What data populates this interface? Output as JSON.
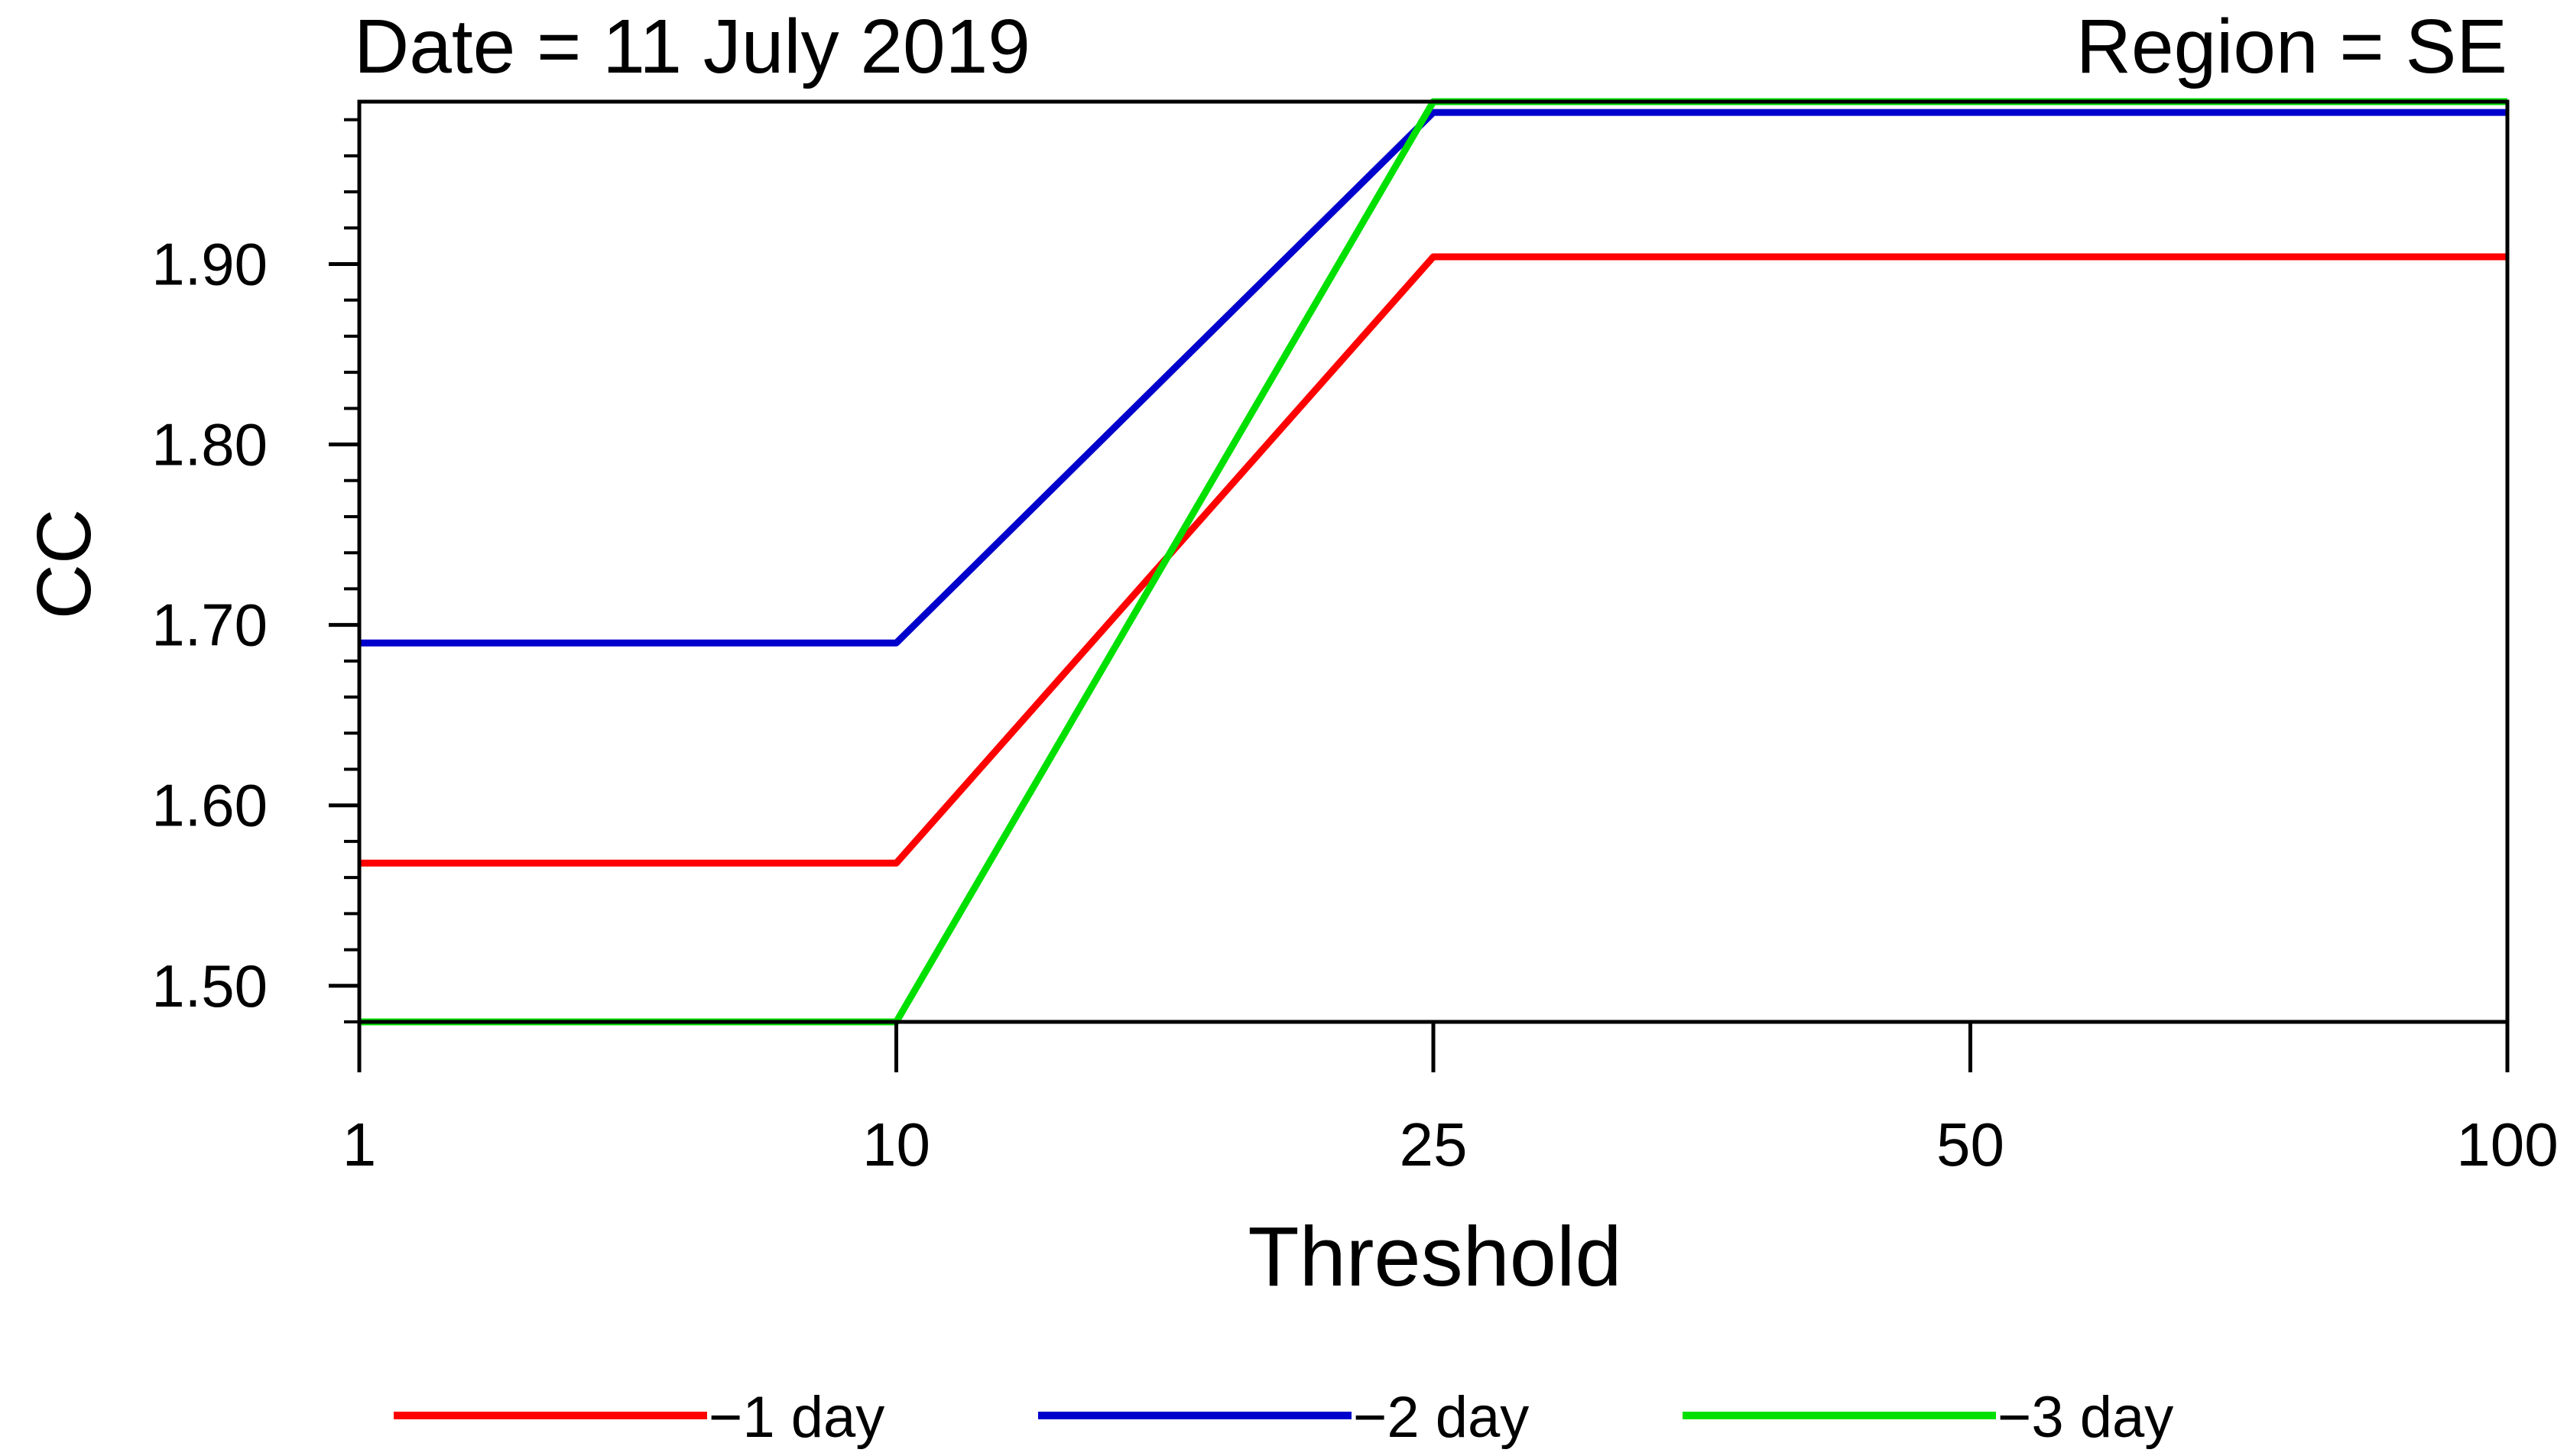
{
  "chart_data": {
    "type": "line",
    "title_left": "Date = 11 July 2019",
    "title_right": "Region = SE",
    "xlabel": "Threshold",
    "ylabel": "CC",
    "x": [
      "1",
      "10",
      "25",
      "50",
      "100"
    ],
    "ylim": [
      1.48,
      1.99
    ],
    "yticks": [
      "1.50",
      "1.60",
      "1.70",
      "1.80",
      "1.90"
    ],
    "ytick_values": [
      1.5,
      1.6,
      1.7,
      1.8,
      1.9
    ],
    "grid": false,
    "legend_position": "bottom",
    "series": [
      {
        "name": "−1 day",
        "color": "#ff0000",
        "values": [
          1.568,
          1.568,
          1.904,
          1.904,
          1.904
        ]
      },
      {
        "name": "−2 day",
        "color": "#0000cc",
        "values": [
          1.69,
          1.69,
          1.984,
          1.984,
          1.984
        ]
      },
      {
        "name": "−3 day",
        "color": "#00e000",
        "values": [
          1.48,
          1.48,
          1.99,
          1.99,
          1.99
        ]
      }
    ]
  }
}
